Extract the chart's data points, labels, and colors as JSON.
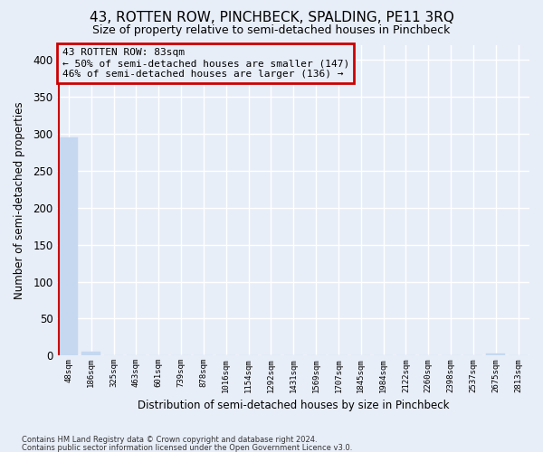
{
  "title": "43, ROTTEN ROW, PINCHBECK, SPALDING, PE11 3RQ",
  "subtitle": "Size of property relative to semi-detached houses in Pinchbeck",
  "xlabel": "Distribution of semi-detached houses by size in Pinchbeck",
  "ylabel": "Number of semi-detached properties",
  "footnote1": "Contains HM Land Registry data © Crown copyright and database right 2024.",
  "footnote2": "Contains public sector information licensed under the Open Government Licence v3.0.",
  "bar_labels": [
    "48sqm",
    "186sqm",
    "325sqm",
    "463sqm",
    "601sqm",
    "739sqm",
    "878sqm",
    "1016sqm",
    "1154sqm",
    "1292sqm",
    "1431sqm",
    "1569sqm",
    "1707sqm",
    "1845sqm",
    "1984sqm",
    "2122sqm",
    "2260sqm",
    "2398sqm",
    "2537sqm",
    "2675sqm",
    "2813sqm"
  ],
  "bar_values": [
    295,
    5,
    0,
    0,
    0,
    0,
    0,
    0,
    0,
    0,
    0,
    0,
    0,
    0,
    0,
    0,
    0,
    0,
    0,
    3,
    0
  ],
  "bar_color": "#c5d8f0",
  "highlight_line_color": "#cc0000",
  "ylim": [
    0,
    420
  ],
  "yticks": [
    0,
    50,
    100,
    150,
    200,
    250,
    300,
    350,
    400
  ],
  "annotation_line1": "43 ROTTEN ROW: 83sqm",
  "annotation_line2": "← 50% of semi-detached houses are smaller (147)",
  "annotation_line3": "46% of semi-detached houses are larger (136) →",
  "annotation_box_color": "#cc0000",
  "bg_color": "#e8eef8",
  "grid_color": "#d0d8e8",
  "title_fontsize": 11,
  "subtitle_fontsize": 9
}
